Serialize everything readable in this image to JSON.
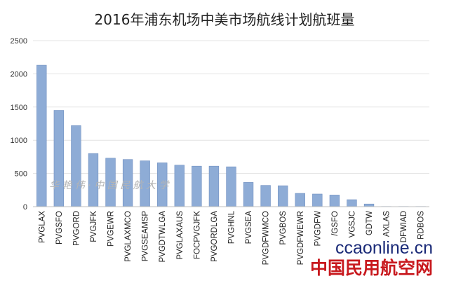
{
  "chart_data": {
    "type": "bar",
    "title": "2016年浦东机场中美市场航线计划航班量",
    "xlabel": "",
    "ylabel": "",
    "ylim": [
      0,
      2500
    ],
    "yticks": [
      0,
      500,
      1000,
      1500,
      2000,
      2500
    ],
    "grid": true,
    "legend": "none",
    "bar_color": "#8eacd6",
    "bar_edge_color": "#6f8fc0",
    "categories": [
      "PVGLAX",
      "PVGSFO",
      "PVGORD",
      "PVGJFK",
      "PVGEWR",
      "PVGLAXMCO",
      "PVGSEAMSP",
      "PVGDTWLGA",
      "PVGLAXAUS",
      "FOCPVGJFK",
      "PVGORDLGA",
      "PVGHNL",
      "PVGSEA",
      "PVGDFWMCO",
      "PVGBOS",
      "PVGDFWEWR",
      "PVGDFW",
      "/GSFO",
      "VGSJC",
      "GDTW",
      "AXLAS",
      "DFWIAD",
      "RDBOS"
    ],
    "values": [
      2130,
      1450,
      1220,
      800,
      730,
      710,
      690,
      660,
      625,
      610,
      610,
      600,
      365,
      320,
      315,
      200,
      190,
      175,
      105,
      40,
      3,
      3,
      3
    ]
  },
  "watermarks": {
    "left_text": "华 艳 伟 · 中 国 民 航 大 学",
    "site_en": "ccaonline.cn",
    "site_cn": "中国民用航空网"
  }
}
